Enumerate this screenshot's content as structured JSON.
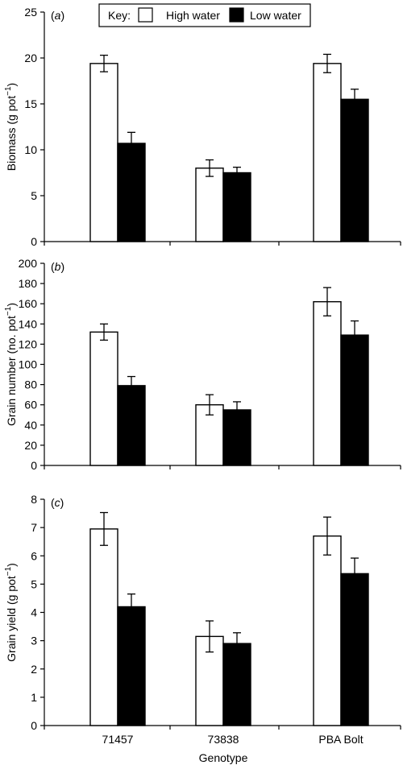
{
  "legend": {
    "key_label": "Key:",
    "items": [
      {
        "name": "High water",
        "fill": "#ffffff"
      },
      {
        "name": "Low water",
        "fill": "#000000"
      }
    ]
  },
  "x_axis_title": "Genotype",
  "chart_data": [
    {
      "type": "bar",
      "panel_label": "a",
      "ylabel": "Biomass (g pot",
      "ylabel_sup": "−1",
      "ylim": [
        0,
        25
      ],
      "yticks": [
        0,
        5,
        10,
        15,
        20,
        25
      ],
      "categories": [
        "71457",
        "73838",
        "PBA Bolt"
      ],
      "series": [
        {
          "name": "High water",
          "color": "#ffffff",
          "values": [
            19.4,
            8.0,
            19.4
          ],
          "errors": [
            0.9,
            0.9,
            1.0
          ]
        },
        {
          "name": "Low water",
          "color": "#000000",
          "values": [
            10.7,
            7.5,
            15.5
          ],
          "errors": [
            1.2,
            0.6,
            1.1
          ]
        }
      ]
    },
    {
      "type": "bar",
      "panel_label": "b",
      "ylabel": "Grain number (no. pot",
      "ylabel_sup": "−1",
      "ylim": [
        0,
        200
      ],
      "yticks": [
        0,
        20,
        40,
        60,
        80,
        100,
        120,
        140,
        160,
        180,
        200
      ],
      "categories": [
        "71457",
        "73838",
        "PBA Bolt"
      ],
      "series": [
        {
          "name": "High water",
          "color": "#ffffff",
          "values": [
            132,
            60,
            162
          ],
          "errors": [
            8,
            10,
            14
          ]
        },
        {
          "name": "Low water",
          "color": "#000000",
          "values": [
            79,
            55,
            129
          ],
          "errors": [
            9,
            8,
            14
          ]
        }
      ]
    },
    {
      "type": "bar",
      "panel_label": "c",
      "ylabel": "Grain yield (g pot",
      "ylabel_sup": "−1",
      "ylim": [
        0,
        8
      ],
      "yticks": [
        0,
        1,
        2,
        3,
        4,
        5,
        6,
        7,
        8
      ],
      "categories": [
        "71457",
        "73838",
        "PBA Bolt"
      ],
      "series": [
        {
          "name": "High water",
          "color": "#ffffff",
          "values": [
            6.95,
            3.15,
            6.7
          ],
          "errors": [
            0.58,
            0.55,
            0.67
          ]
        },
        {
          "name": "Low water",
          "color": "#000000",
          "values": [
            4.2,
            2.9,
            5.37
          ],
          "errors": [
            0.45,
            0.38,
            0.55
          ]
        }
      ]
    }
  ]
}
